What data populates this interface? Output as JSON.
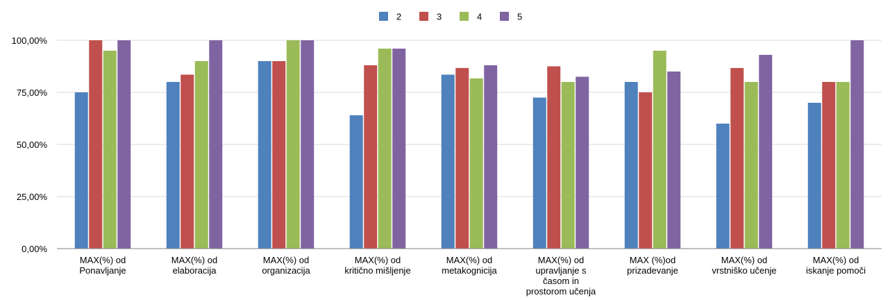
{
  "chart_data": {
    "type": "bar",
    "title": "",
    "xlabel": "",
    "ylabel": "",
    "ylim": [
      0,
      100
    ],
    "yticks": [
      0,
      25,
      50,
      75,
      100
    ],
    "ytick_labels": [
      "0,00%",
      "25,00%",
      "50,00%",
      "75,00%",
      "100,00%"
    ],
    "grid": true,
    "legend_position": "top",
    "categories": [
      [
        "MAX(%) od",
        "Ponavljanje"
      ],
      [
        "MAX(%) od",
        "elaboracija"
      ],
      [
        "MAX(%) od",
        "organizacija"
      ],
      [
        "MAX(%) od",
        "kritično mišljenje"
      ],
      [
        "MAX(%) od",
        "metakognicija"
      ],
      [
        "MAX(%) od",
        "upravljanje s",
        "časom in",
        "prostorom učenja"
      ],
      [
        "MAX (%)od",
        "prizadevanje"
      ],
      [
        "MAX(%) od",
        "vrstniško učenje"
      ],
      [
        "MAX(%) od",
        "iskanje pomoči"
      ]
    ],
    "series": [
      {
        "name": "2",
        "color": "#4f81bd",
        "values": [
          75,
          80,
          90,
          64,
          83.5,
          72.5,
          80,
          60,
          70
        ]
      },
      {
        "name": "3",
        "color": "#c0504d",
        "values": [
          100,
          83.5,
          90,
          88,
          86.7,
          87.5,
          75,
          86.7,
          80
        ]
      },
      {
        "name": "4",
        "color": "#9bbb59",
        "values": [
          95,
          90,
          100,
          96,
          81.7,
          80,
          95,
          80,
          80
        ]
      },
      {
        "name": "5",
        "color": "#8064a2",
        "values": [
          100,
          100,
          100,
          96,
          88,
          82.5,
          85,
          93,
          100
        ]
      }
    ]
  }
}
